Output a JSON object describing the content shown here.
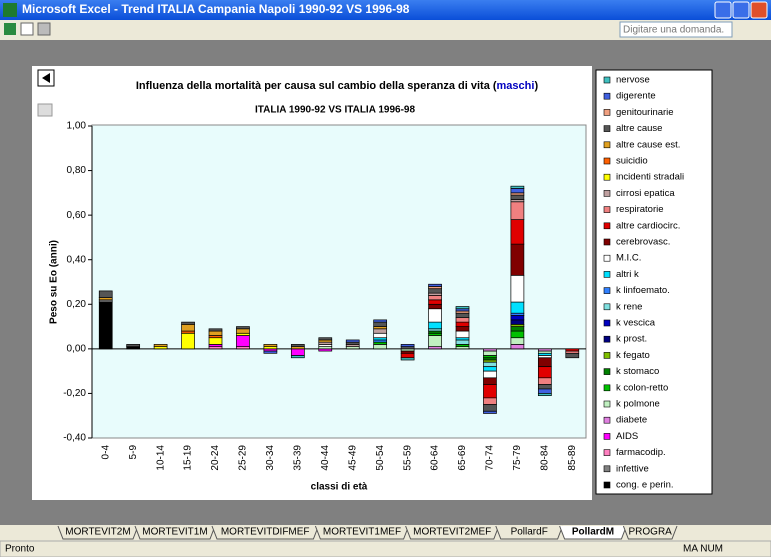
{
  "window": {
    "title": "Microsoft Excel - Trend ITALIA Campania Napoli 1990-92 VS 1996-98",
    "help_box": "Digitare una domanda.",
    "sheet_tabs": [
      "MORTEVIT2M",
      "MORTEVIT1M",
      "MORTEVITDIFMEF",
      "MORTEVIT1MEF",
      "MORTEVIT2MEF",
      "PollardF",
      "PollardM",
      "PROGRA"
    ],
    "active_tab": "PollardM",
    "status_left": "Pronto",
    "status_right": "MA NUM"
  },
  "chart_data": {
    "type": "stacked_bar",
    "title": "Influenza della mortalità per causa sul cambio della speranza di vita (",
    "title_highlight": "maschi",
    "title_end": ")",
    "subtitle": "ITALIA 1990-92 VS ITALIA 1996-98",
    "y_label": "Peso su Eo (anni)",
    "x_label": "classi di età",
    "categories": [
      "0-4",
      "5-9",
      "10-14",
      "15-19",
      "20-24",
      "25-29",
      "30-34",
      "35-39",
      "40-44",
      "45-49",
      "50-54",
      "55-59",
      "60-64",
      "65-69",
      "70-74",
      "75-79",
      "80-84",
      "85-89"
    ],
    "ylim": [
      -0.4,
      1.0
    ],
    "yticks": [
      {
        "value": 1.0,
        "label": "1,00"
      },
      {
        "value": 0.8,
        "label": "0,80"
      },
      {
        "value": 0.6,
        "label": "0,60"
      },
      {
        "value": 0.4,
        "label": "0,40"
      },
      {
        "value": 0.2,
        "label": "0,20"
      },
      {
        "value": 0.0,
        "label": "0,00"
      },
      {
        "value": -0.2,
        "label": "-0,20"
      },
      {
        "value": -0.4,
        "label": "-0,40"
      }
    ],
    "grid": false,
    "legend": "right",
    "series": [
      {
        "name": "nervose",
        "color": "#40c0c0",
        "values": [
          0,
          0,
          0,
          0,
          0,
          0,
          0,
          -0.01,
          0,
          0,
          0,
          -0.01,
          0,
          0.01,
          0,
          0.01,
          -0.01,
          0
        ]
      },
      {
        "name": "digerente",
        "color": "#4060e0",
        "values": [
          0,
          0,
          0,
          0,
          0,
          0,
          -0.01,
          0,
          0,
          0.01,
          0.01,
          0.01,
          0.01,
          0.01,
          -0.01,
          0.02,
          -0.02,
          0
        ]
      },
      {
        "name": "genitourinarie",
        "color": "#f0a080",
        "values": [
          0,
          0,
          0,
          0,
          0,
          0,
          0,
          0,
          0,
          0,
          0,
          0,
          0.01,
          0.01,
          0,
          0.01,
          0,
          0
        ]
      },
      {
        "name": "altre cause",
        "color": "#555555",
        "values": [
          0.03,
          0.01,
          0,
          0.01,
          0.01,
          0.01,
          0,
          0.01,
          0.01,
          0.01,
          0.02,
          0.01,
          0.02,
          0.02,
          -0.03,
          0.02,
          -0.02,
          -0.02
        ]
      },
      {
        "name": "altre cause est.",
        "color": "#e0a020",
        "values": [
          0.01,
          0,
          0.01,
          0.03,
          0.02,
          0.02,
          0.01,
          0.01,
          0.01,
          0,
          0.01,
          0,
          0,
          0,
          0,
          0,
          0,
          0
        ]
      },
      {
        "name": "suicidio",
        "color": "#ff6000",
        "values": [
          0,
          0,
          0,
          0.01,
          0.01,
          0,
          0,
          0,
          0,
          0,
          0,
          0,
          0,
          0,
          0,
          0,
          0,
          0
        ]
      },
      {
        "name": "incidenti stradali",
        "color": "#ffff00",
        "values": [
          0,
          0,
          0.01,
          0.07,
          0.03,
          0.01,
          0.01,
          0,
          0,
          0,
          0,
          0,
          0,
          0,
          0,
          0,
          0,
          0
        ]
      },
      {
        "name": "cirrosi epatica",
        "color": "#c0a0a0",
        "values": [
          0,
          0,
          0,
          0,
          0,
          0,
          0,
          0,
          0.01,
          0.01,
          0.02,
          0,
          0.01,
          0,
          0,
          0.01,
          0,
          0
        ]
      },
      {
        "name": "respiratorie",
        "color": "#f08080",
        "values": [
          0,
          0,
          0,
          0,
          0,
          0,
          0,
          0,
          0,
          0,
          0,
          0,
          0.02,
          0.02,
          -0.03,
          0.08,
          -0.03,
          -0.01
        ]
      },
      {
        "name": "altre cardiocirc.",
        "color": "#e00000",
        "values": [
          0,
          0,
          0,
          0,
          0,
          0,
          0,
          0,
          0,
          0,
          0,
          -0.02,
          0.02,
          0.02,
          -0.06,
          0.11,
          -0.05,
          -0.01
        ]
      },
      {
        "name": "cerebrovasc.",
        "color": "#800000",
        "values": [
          0,
          0,
          0,
          0,
          0,
          0,
          0,
          0,
          0,
          0,
          0,
          -0.01,
          0.02,
          0.02,
          -0.03,
          0.14,
          -0.04,
          0
        ]
      },
      {
        "name": "M.I.C.",
        "color": "#ffffff",
        "values": [
          0,
          0,
          0,
          0,
          0,
          0,
          0,
          0,
          0.01,
          0,
          0.02,
          0,
          0.06,
          0.03,
          -0.03,
          0.12,
          -0.01,
          0
        ]
      },
      {
        "name": "altri k",
        "color": "#00e0ff",
        "values": [
          0,
          0,
          0,
          0,
          0,
          0,
          0,
          0,
          0,
          0,
          0.01,
          0,
          0.03,
          0.01,
          -0.02,
          0.05,
          -0.01,
          0
        ]
      },
      {
        "name": "k linfoemato.",
        "color": "#3080ff",
        "values": [
          0,
          0,
          0,
          0,
          0,
          0,
          0,
          0,
          0,
          0,
          0.01,
          0,
          0,
          0,
          0,
          0.01,
          0,
          0
        ]
      },
      {
        "name": "k rene",
        "color": "#80e0e0",
        "values": [
          0,
          0,
          0,
          0,
          0,
          0,
          0,
          0,
          0,
          0,
          0,
          0,
          0.01,
          0.02,
          -0.02,
          0,
          0,
          0
        ]
      },
      {
        "name": "k vescica",
        "color": "#0000c0",
        "values": [
          0,
          0,
          0,
          0,
          0,
          0,
          0,
          0,
          0,
          0,
          0,
          0,
          0,
          0,
          0,
          0.02,
          0,
          0
        ]
      },
      {
        "name": "k prost.",
        "color": "#000080",
        "values": [
          0,
          0,
          0,
          0,
          0,
          0,
          0,
          0,
          0,
          0,
          0,
          0,
          0,
          0,
          0,
          0.02,
          0,
          0
        ]
      },
      {
        "name": "k fegato",
        "color": "#80c000",
        "values": [
          0,
          0,
          0,
          0,
          0,
          0,
          0,
          0,
          0,
          0,
          0,
          0,
          0,
          0,
          -0.01,
          0.01,
          0,
          0
        ]
      },
      {
        "name": "k stomaco",
        "color": "#008000",
        "values": [
          0,
          0,
          0,
          0,
          0,
          0,
          0,
          0,
          0,
          0,
          0,
          0,
          0.01,
          0,
          -0.01,
          0.02,
          0,
          0
        ]
      },
      {
        "name": "k colon-retto",
        "color": "#00c000",
        "values": [
          0,
          0,
          0,
          0,
          0,
          0,
          0,
          0,
          0,
          0,
          0.01,
          0,
          0.01,
          0.01,
          -0.01,
          0.03,
          0,
          0
        ]
      },
      {
        "name": "k polmone",
        "color": "#c0f0c0",
        "values": [
          0,
          0,
          0,
          0,
          0,
          0,
          0,
          0,
          0.01,
          0.01,
          0.02,
          -0.01,
          0.05,
          0.01,
          -0.02,
          0.03,
          -0.01,
          0
        ]
      },
      {
        "name": "diabete",
        "color": "#e080e0",
        "values": [
          0,
          0,
          0,
          0,
          0,
          0,
          0,
          0,
          0,
          0,
          0,
          0,
          0.01,
          0,
          -0.01,
          0.02,
          -0.01,
          0
        ]
      },
      {
        "name": "AIDS",
        "color": "#ff00ff",
        "values": [
          0,
          0,
          0,
          0,
          0.01,
          0.05,
          -0.01,
          -0.03,
          -0.01,
          0,
          0,
          0,
          0,
          0,
          0,
          0,
          0,
          0
        ]
      },
      {
        "name": "farmacodip.",
        "color": "#ff80c0",
        "values": [
          0,
          0,
          0,
          0,
          0.01,
          0.01,
          0,
          0,
          0,
          0,
          0,
          0,
          0,
          0,
          0,
          0,
          0,
          0
        ]
      },
      {
        "name": "infettive",
        "color": "#808080",
        "values": [
          0.01,
          0,
          0,
          0,
          0,
          0,
          0,
          0,
          0,
          0,
          0,
          0,
          0,
          0,
          0,
          0,
          0,
          0
        ]
      },
      {
        "name": "cong. e perin.",
        "color": "#000000",
        "values": [
          0.21,
          0.01,
          0,
          0,
          0,
          0,
          0,
          0,
          0,
          0,
          0,
          0,
          0,
          0,
          0,
          0,
          0,
          0
        ]
      }
    ]
  }
}
